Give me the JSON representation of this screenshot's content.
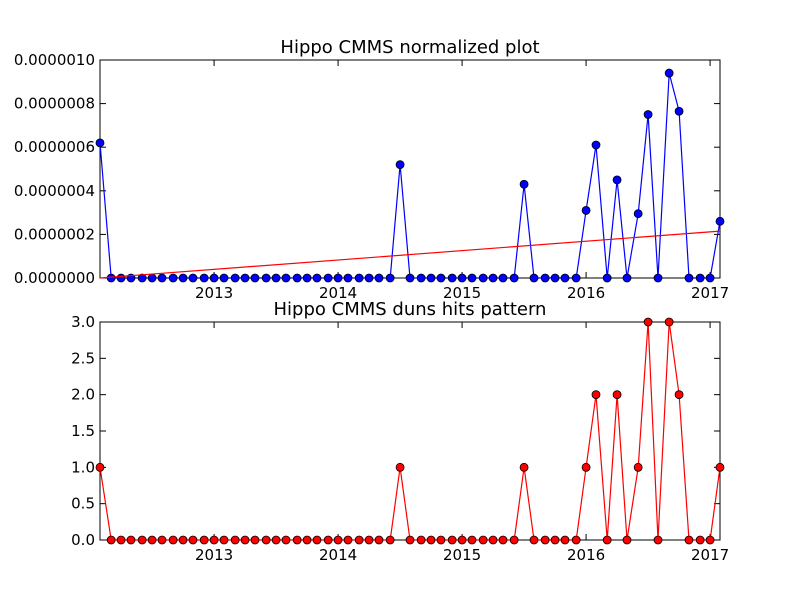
{
  "chart_data": [
    {
      "type": "line",
      "title": "Hippo CMMS normalized plot",
      "xlabel": "",
      "ylabel": "",
      "x_ticks": [
        "2013",
        "2014",
        "2015",
        "2016",
        "2017"
      ],
      "y_ticks": [
        "0.0000000",
        "0.0000002",
        "0.0000004",
        "0.0000006",
        "0.0000008",
        "0.0000010"
      ],
      "xlim": [
        2012.08,
        2017.08
      ],
      "ylim": [
        0,
        1e-06
      ],
      "grid": false,
      "series": [
        {
          "color": "#0000ff",
          "marker": "circle",
          "points": [
            [
              2012.08,
              6.2e-07
            ],
            [
              2012.17,
              0
            ],
            [
              2012.25,
              0
            ],
            [
              2012.33,
              0
            ],
            [
              2012.42,
              0
            ],
            [
              2012.5,
              0
            ],
            [
              2012.58,
              0
            ],
            [
              2012.67,
              0
            ],
            [
              2012.75,
              0
            ],
            [
              2012.83,
              0
            ],
            [
              2012.92,
              0
            ],
            [
              2013.0,
              0
            ],
            [
              2013.08,
              0
            ],
            [
              2013.17,
              0
            ],
            [
              2013.25,
              0
            ],
            [
              2013.33,
              0
            ],
            [
              2013.42,
              0
            ],
            [
              2013.5,
              0
            ],
            [
              2013.58,
              0
            ],
            [
              2013.67,
              0
            ],
            [
              2013.75,
              0
            ],
            [
              2013.83,
              0
            ],
            [
              2013.92,
              0
            ],
            [
              2014.0,
              0
            ],
            [
              2014.08,
              0
            ],
            [
              2014.17,
              0
            ],
            [
              2014.25,
              0
            ],
            [
              2014.33,
              0
            ],
            [
              2014.42,
              0
            ],
            [
              2014.5,
              5.2e-07
            ],
            [
              2014.58,
              0
            ],
            [
              2014.67,
              0
            ],
            [
              2014.75,
              0
            ],
            [
              2014.83,
              0
            ],
            [
              2014.92,
              0
            ],
            [
              2015.0,
              0
            ],
            [
              2015.08,
              0
            ],
            [
              2015.17,
              0
            ],
            [
              2015.25,
              0
            ],
            [
              2015.33,
              0
            ],
            [
              2015.42,
              0
            ],
            [
              2015.5,
              4.3e-07
            ],
            [
              2015.58,
              0
            ],
            [
              2015.67,
              0
            ],
            [
              2015.75,
              0
            ],
            [
              2015.83,
              0
            ],
            [
              2015.92,
              0
            ],
            [
              2016.0,
              3.1e-07
            ],
            [
              2016.08,
              6.1e-07
            ],
            [
              2016.17,
              0
            ],
            [
              2016.25,
              4.5e-07
            ],
            [
              2016.33,
              0
            ],
            [
              2016.42,
              2.95e-07
            ],
            [
              2016.5,
              7.5e-07
            ],
            [
              2016.58,
              0
            ],
            [
              2016.67,
              9.4e-07
            ],
            [
              2016.75,
              7.65e-07
            ],
            [
              2016.83,
              0
            ],
            [
              2016.92,
              0
            ],
            [
              2017.0,
              0
            ],
            [
              2017.08,
              2.6e-07
            ]
          ]
        },
        {
          "color": "#ff0000",
          "marker": "none",
          "points": [
            [
              2012.08,
              0
            ],
            [
              2017.08,
              2.15e-07
            ]
          ]
        }
      ]
    },
    {
      "type": "line",
      "title": "Hippo CMMS duns hits pattern",
      "xlabel": "",
      "ylabel": "",
      "x_ticks": [
        "2013",
        "2014",
        "2015",
        "2016",
        "2017"
      ],
      "y_ticks": [
        "0.0",
        "0.5",
        "1.0",
        "1.5",
        "2.0",
        "2.5",
        "3.0"
      ],
      "xlim": [
        2012.08,
        2017.08
      ],
      "ylim": [
        0,
        3
      ],
      "grid": false,
      "series": [
        {
          "color": "#ff0000",
          "marker": "circle",
          "points": [
            [
              2012.08,
              1
            ],
            [
              2012.17,
              0
            ],
            [
              2012.25,
              0
            ],
            [
              2012.33,
              0
            ],
            [
              2012.42,
              0
            ],
            [
              2012.5,
              0
            ],
            [
              2012.58,
              0
            ],
            [
              2012.67,
              0
            ],
            [
              2012.75,
              0
            ],
            [
              2012.83,
              0
            ],
            [
              2012.92,
              0
            ],
            [
              2013.0,
              0
            ],
            [
              2013.08,
              0
            ],
            [
              2013.17,
              0
            ],
            [
              2013.25,
              0
            ],
            [
              2013.33,
              0
            ],
            [
              2013.42,
              0
            ],
            [
              2013.5,
              0
            ],
            [
              2013.58,
              0
            ],
            [
              2013.67,
              0
            ],
            [
              2013.75,
              0
            ],
            [
              2013.83,
              0
            ],
            [
              2013.92,
              0
            ],
            [
              2014.0,
              0
            ],
            [
              2014.08,
              0
            ],
            [
              2014.17,
              0
            ],
            [
              2014.25,
              0
            ],
            [
              2014.33,
              0
            ],
            [
              2014.42,
              0
            ],
            [
              2014.5,
              1
            ],
            [
              2014.58,
              0
            ],
            [
              2014.67,
              0
            ],
            [
              2014.75,
              0
            ],
            [
              2014.83,
              0
            ],
            [
              2014.92,
              0
            ],
            [
              2015.0,
              0
            ],
            [
              2015.08,
              0
            ],
            [
              2015.17,
              0
            ],
            [
              2015.25,
              0
            ],
            [
              2015.33,
              0
            ],
            [
              2015.42,
              0
            ],
            [
              2015.5,
              1
            ],
            [
              2015.58,
              0
            ],
            [
              2015.67,
              0
            ],
            [
              2015.75,
              0
            ],
            [
              2015.83,
              0
            ],
            [
              2015.92,
              0
            ],
            [
              2016.0,
              1
            ],
            [
              2016.08,
              2
            ],
            [
              2016.17,
              0
            ],
            [
              2016.25,
              2
            ],
            [
              2016.33,
              0
            ],
            [
              2016.42,
              1
            ],
            [
              2016.5,
              3
            ],
            [
              2016.58,
              0
            ],
            [
              2016.67,
              3
            ],
            [
              2016.75,
              2
            ],
            [
              2016.83,
              0
            ],
            [
              2016.92,
              0
            ],
            [
              2017.0,
              0
            ],
            [
              2017.08,
              1
            ]
          ]
        }
      ]
    }
  ]
}
